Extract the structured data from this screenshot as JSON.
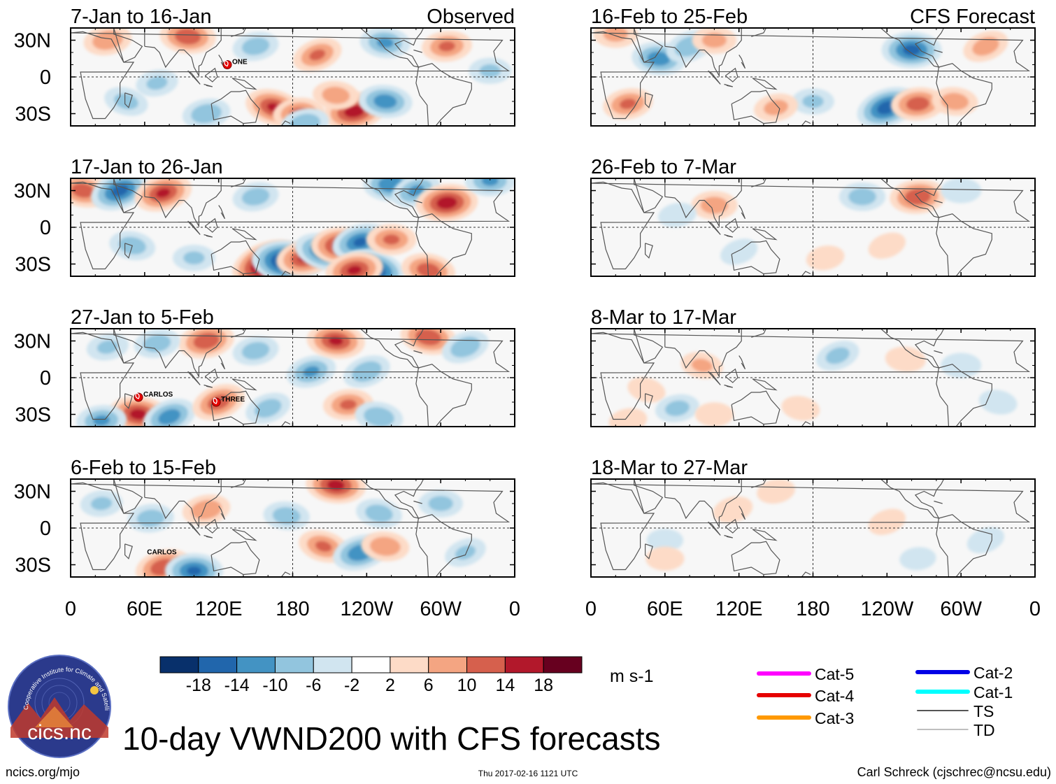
{
  "chart_data": {
    "type": "heatmap",
    "title": "10-day VWND200 with CFS forecasts",
    "variable": "VWND200",
    "units": "m s-1",
    "columns": [
      {
        "header_right": "Observed"
      },
      {
        "header_right": "CFS Forecast"
      }
    ],
    "x_ticks": [
      "0",
      "60E",
      "120E",
      "180",
      "120W",
      "60W",
      "0"
    ],
    "y_ticks": [
      "30N",
      "0",
      "30S"
    ],
    "xlim_deg_east": [
      0,
      360
    ],
    "ylim_deg": [
      -40,
      40
    ],
    "panels": [
      {
        "label": "7-Jan to 16-Jan",
        "column": 0,
        "storms": [
          {
            "name": "ONE",
            "lon": 127,
            "lat": 10
          }
        ],
        "anomalies": [
          {
            "lon": 95,
            "lat": 33,
            "v": 13
          },
          {
            "lon": 30,
            "lat": 30,
            "v": 9
          },
          {
            "lon": 150,
            "lat": 25,
            "v": -8
          },
          {
            "lon": 200,
            "lat": 18,
            "v": 10
          },
          {
            "lon": 255,
            "lat": 28,
            "v": -10
          },
          {
            "lon": 305,
            "lat": 25,
            "v": 10
          },
          {
            "lon": 70,
            "lat": -5,
            "v": -6
          },
          {
            "lon": 165,
            "lat": -25,
            "v": 14
          },
          {
            "lon": 185,
            "lat": -30,
            "v": 11
          },
          {
            "lon": 230,
            "lat": -28,
            "v": 16
          },
          {
            "lon": 190,
            "lat": -38,
            "v": -9
          },
          {
            "lon": 255,
            "lat": -20,
            "v": -12
          },
          {
            "lon": 215,
            "lat": -15,
            "v": 8
          },
          {
            "lon": 45,
            "lat": -20,
            "v": -7
          },
          {
            "lon": 110,
            "lat": -30,
            "v": -9
          },
          {
            "lon": 340,
            "lat": 5,
            "v": -6
          }
        ]
      },
      {
        "label": "17-Jan to 26-Jan",
        "column": 0,
        "storms": [],
        "anomalies": [
          {
            "lon": 10,
            "lat": 30,
            "v": 12
          },
          {
            "lon": 40,
            "lat": 30,
            "v": -15
          },
          {
            "lon": 75,
            "lat": 28,
            "v": 14
          },
          {
            "lon": 150,
            "lat": 25,
            "v": -8
          },
          {
            "lon": 260,
            "lat": 35,
            "v": -13
          },
          {
            "lon": 280,
            "lat": 30,
            "v": -10
          },
          {
            "lon": 305,
            "lat": 20,
            "v": 16
          },
          {
            "lon": 340,
            "lat": 38,
            "v": -10
          },
          {
            "lon": 160,
            "lat": -30,
            "v": 22
          },
          {
            "lon": 175,
            "lat": -28,
            "v": -20
          },
          {
            "lon": 190,
            "lat": -25,
            "v": 14
          },
          {
            "lon": 205,
            "lat": -20,
            "v": -14
          },
          {
            "lon": 220,
            "lat": -15,
            "v": 16
          },
          {
            "lon": 235,
            "lat": -12,
            "v": -14
          },
          {
            "lon": 245,
            "lat": -35,
            "v": -18
          },
          {
            "lon": 230,
            "lat": -35,
            "v": 14
          },
          {
            "lon": 260,
            "lat": -10,
            "v": 10
          },
          {
            "lon": 290,
            "lat": -35,
            "v": 12
          },
          {
            "lon": 100,
            "lat": -25,
            "v": -6
          },
          {
            "lon": 50,
            "lat": -15,
            "v": -8
          }
        ]
      },
      {
        "label": "27-Jan to 5-Feb",
        "column": 0,
        "storms": [
          {
            "name": "CARLOS",
            "lon": 55,
            "lat": -16
          },
          {
            "name": "THREE",
            "lon": 118,
            "lat": -20
          }
        ],
        "anomalies": [
          {
            "lon": 110,
            "lat": 30,
            "v": 13
          },
          {
            "lon": 70,
            "lat": 28,
            "v": -8
          },
          {
            "lon": 30,
            "lat": 25,
            "v": -6
          },
          {
            "lon": 150,
            "lat": 22,
            "v": -8
          },
          {
            "lon": 195,
            "lat": 5,
            "v": -10
          },
          {
            "lon": 215,
            "lat": 30,
            "v": 14
          },
          {
            "lon": 240,
            "lat": 5,
            "v": -9
          },
          {
            "lon": 290,
            "lat": 33,
            "v": 13
          },
          {
            "lon": 320,
            "lat": 25,
            "v": -9
          },
          {
            "lon": 55,
            "lat": -30,
            "v": 15
          },
          {
            "lon": 25,
            "lat": -35,
            "v": -10
          },
          {
            "lon": 80,
            "lat": -32,
            "v": -12
          },
          {
            "lon": 120,
            "lat": -20,
            "v": 12
          },
          {
            "lon": 160,
            "lat": -25,
            "v": -8
          },
          {
            "lon": 225,
            "lat": -22,
            "v": 10
          },
          {
            "lon": 250,
            "lat": -32,
            "v": -9
          }
        ]
      },
      {
        "label": "6-Feb to 15-Feb",
        "column": 0,
        "storms": [
          {
            "name": "CARLOS",
            "lon": 58,
            "lat": -22
          }
        ],
        "anomalies": [
          {
            "lon": 215,
            "lat": 35,
            "v": 15
          },
          {
            "lon": 110,
            "lat": 15,
            "v": 9
          },
          {
            "lon": 65,
            "lat": 8,
            "v": -8
          },
          {
            "lon": 175,
            "lat": 10,
            "v": -8
          },
          {
            "lon": 250,
            "lat": 12,
            "v": -8
          },
          {
            "lon": 300,
            "lat": 20,
            "v": -7
          },
          {
            "lon": 75,
            "lat": -32,
            "v": 13
          },
          {
            "lon": 100,
            "lat": -35,
            "v": -14
          },
          {
            "lon": 205,
            "lat": -15,
            "v": 10
          },
          {
            "lon": 235,
            "lat": -20,
            "v": -13
          },
          {
            "lon": 255,
            "lat": -15,
            "v": 9
          },
          {
            "lon": 25,
            "lat": 20,
            "v": -6
          },
          {
            "lon": 320,
            "lat": -20,
            "v": -6
          }
        ]
      },
      {
        "label": "16-Feb to 25-Feb",
        "column": 1,
        "storms": [],
        "anomalies": [
          {
            "lon": 55,
            "lat": 15,
            "v": -12
          },
          {
            "lon": 80,
            "lat": 25,
            "v": -9
          },
          {
            "lon": 260,
            "lat": 22,
            "v": -15
          },
          {
            "lon": 100,
            "lat": 30,
            "v": 7
          },
          {
            "lon": 20,
            "lat": 35,
            "v": 7
          },
          {
            "lon": 320,
            "lat": 25,
            "v": 8
          },
          {
            "lon": 30,
            "lat": -22,
            "v": 10
          },
          {
            "lon": 240,
            "lat": -25,
            "v": -16
          },
          {
            "lon": 265,
            "lat": -22,
            "v": 12
          },
          {
            "lon": 180,
            "lat": -20,
            "v": -6
          },
          {
            "lon": 295,
            "lat": -20,
            "v": 8
          },
          {
            "lon": 150,
            "lat": -25,
            "v": 7
          }
        ]
      },
      {
        "label": "26-Feb to 7-Mar",
        "column": 1,
        "storms": [],
        "anomalies": [
          {
            "lon": 265,
            "lat": 25,
            "v": 13
          },
          {
            "lon": 100,
            "lat": 18,
            "v": 8
          },
          {
            "lon": 220,
            "lat": 25,
            "v": -8
          },
          {
            "lon": 300,
            "lat": 30,
            "v": -5
          },
          {
            "lon": 70,
            "lat": 10,
            "v": -4
          },
          {
            "lon": 240,
            "lat": -15,
            "v": 4
          },
          {
            "lon": 190,
            "lat": -25,
            "v": 4
          },
          {
            "lon": 120,
            "lat": -20,
            "v": -4
          }
        ]
      },
      {
        "label": "8-Mar to 17-Mar",
        "column": 1,
        "storms": [],
        "anomalies": [
          {
            "lon": 90,
            "lat": 10,
            "v": 6
          },
          {
            "lon": 200,
            "lat": 18,
            "v": -7
          },
          {
            "lon": 255,
            "lat": 15,
            "v": 5
          },
          {
            "lon": 300,
            "lat": 10,
            "v": -5
          },
          {
            "lon": 45,
            "lat": -10,
            "v": 4
          },
          {
            "lon": 70,
            "lat": -25,
            "v": -7
          },
          {
            "lon": 100,
            "lat": -30,
            "v": 4
          },
          {
            "lon": 170,
            "lat": -25,
            "v": 4
          },
          {
            "lon": 30,
            "lat": -35,
            "v": 4
          },
          {
            "lon": 330,
            "lat": -20,
            "v": -4
          }
        ]
      },
      {
        "label": "18-Mar to 27-Mar",
        "column": 1,
        "storms": [],
        "anomalies": [
          {
            "lon": 115,
            "lat": 15,
            "v": 5
          },
          {
            "lon": 150,
            "lat": 30,
            "v": 4
          },
          {
            "lon": 240,
            "lat": 5,
            "v": 4
          },
          {
            "lon": 60,
            "lat": -10,
            "v": -3
          },
          {
            "lon": 60,
            "lat": -25,
            "v": 4
          },
          {
            "lon": 320,
            "lat": -10,
            "v": -4
          },
          {
            "lon": 265,
            "lat": -25,
            "v": -3
          }
        ]
      }
    ],
    "colorbar": {
      "levels": [
        "-18",
        "-14",
        "-10",
        "-6",
        "-2",
        "2",
        "6",
        "10",
        "14",
        "18"
      ],
      "colors": [
        "#08306b",
        "#2166ac",
        "#4393c3",
        "#92c5de",
        "#d1e5f0",
        "#ffffff",
        "#fddbc7",
        "#f4a582",
        "#d6604d",
        "#b2182b",
        "#67001f"
      ]
    },
    "storm_legend": [
      {
        "label": "Cat-5",
        "color": "#ff00ff"
      },
      {
        "label": "Cat-4",
        "color": "#e60000"
      },
      {
        "label": "Cat-3",
        "color": "#ff9900"
      },
      {
        "label": "Cat-2",
        "color": "#0000e6"
      },
      {
        "label": "Cat-1",
        "color": "#00ffff"
      },
      {
        "label": "TS",
        "color": "#555555"
      },
      {
        "label": "TD",
        "color": "#aaaaaa"
      }
    ]
  },
  "footer": {
    "left": "ncics.org/mjo",
    "center": "Thu 2017-02-16 1121 UTC",
    "right": "Carl Schreck (cjschrec@ncsu.edu)"
  },
  "logo": {
    "text": "cics.nc",
    "ring_text": "Cooperative Institute for Climate and Satellites",
    "colors": {
      "background": "#2b3a8c",
      "mountain": "#c0392b",
      "mountain2": "#e8883a"
    }
  }
}
